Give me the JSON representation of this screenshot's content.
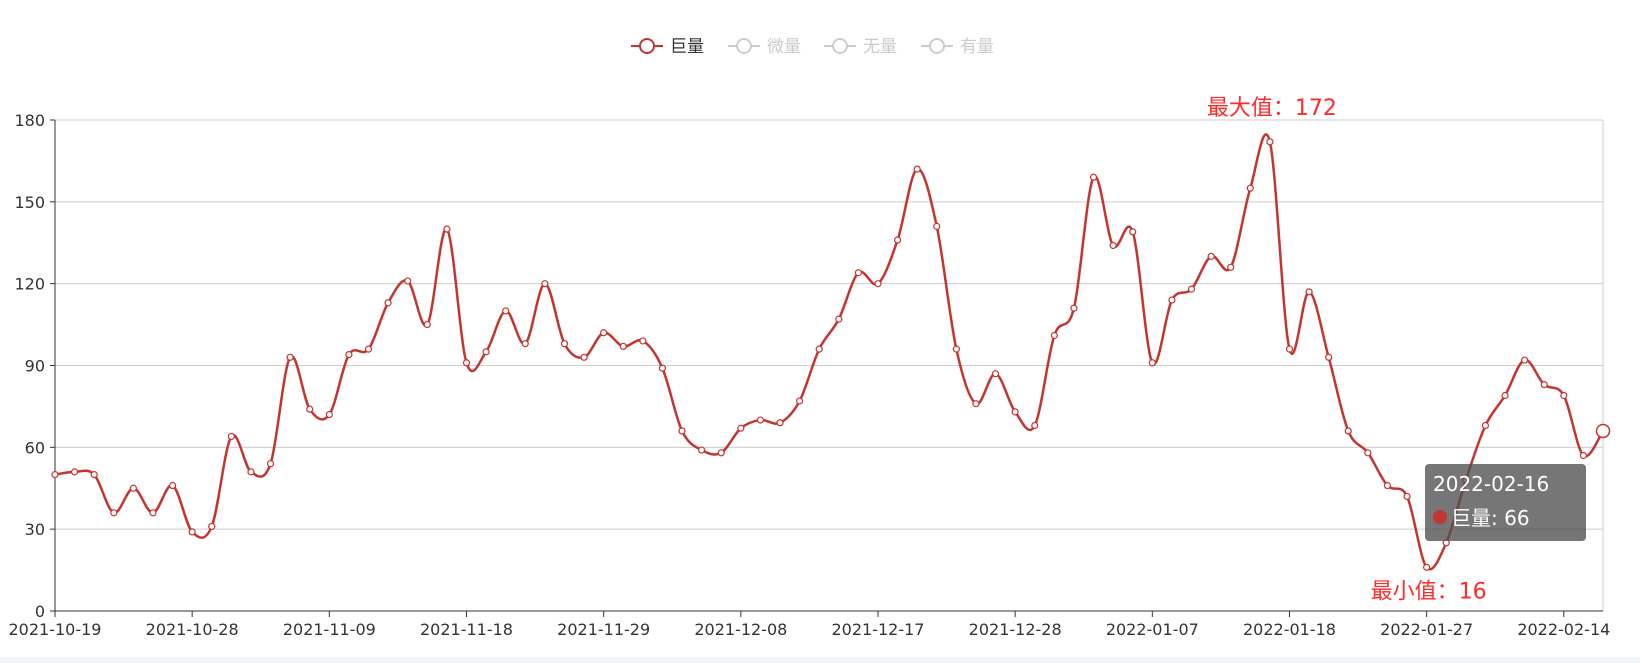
{
  "colors": {
    "series": "#c23531",
    "inactive": "#cccccc",
    "label": "#ff2a2a",
    "axis": "#333333",
    "grid": "#cccccc"
  },
  "chart_data": {
    "type": "line",
    "smooth": true,
    "title": "",
    "xlabel": "",
    "ylabel": "",
    "ylim": [
      0,
      180
    ],
    "yticks": [
      0,
      30,
      60,
      90,
      120,
      150,
      180
    ],
    "grid": true,
    "legend_position": "top-center",
    "legend": [
      {
        "name": "巨量",
        "active": true
      },
      {
        "name": "微量",
        "active": false
      },
      {
        "name": "无量",
        "active": false
      },
      {
        "name": "有量",
        "active": false
      }
    ],
    "x_tick_labels": [
      "2021-10-19",
      "2021-10-28",
      "2021-11-09",
      "2021-11-18",
      "2021-11-29",
      "2021-12-08",
      "2021-12-17",
      "2021-12-28",
      "2022-01-07",
      "2022-01-18",
      "2022-01-27",
      "2022-02-14"
    ],
    "x_tick_index": [
      0,
      7,
      14,
      21,
      28,
      35,
      42,
      49,
      56,
      63,
      70,
      77
    ],
    "series": [
      {
        "name": "巨量",
        "values": [
          50,
          51,
          50,
          36,
          45,
          36,
          46,
          29,
          31,
          64,
          51,
          54,
          93,
          74,
          72,
          94,
          96,
          113,
          121,
          105,
          140,
          91,
          95,
          110,
          98,
          120,
          98,
          93,
          102,
          97,
          99,
          89,
          66,
          59,
          58,
          67,
          70,
          69,
          77,
          96,
          107,
          124,
          120,
          136,
          162,
          141,
          96,
          76,
          87,
          73,
          68,
          101,
          111,
          159,
          134,
          139,
          91,
          114,
          118,
          130,
          126,
          155,
          172,
          96,
          117,
          93,
          66,
          58,
          46,
          42,
          16,
          25,
          48,
          68,
          79,
          92,
          83,
          79,
          57,
          66
        ]
      }
    ],
    "mark_points": [
      {
        "label": "最大值：172",
        "index": 62,
        "value": 172
      },
      {
        "label": "最小值：16",
        "index": 70,
        "value": 16
      }
    ],
    "tooltip": {
      "date": "2022-02-16",
      "series": "巨量",
      "value_text": "巨量: 66",
      "index": 79
    }
  }
}
